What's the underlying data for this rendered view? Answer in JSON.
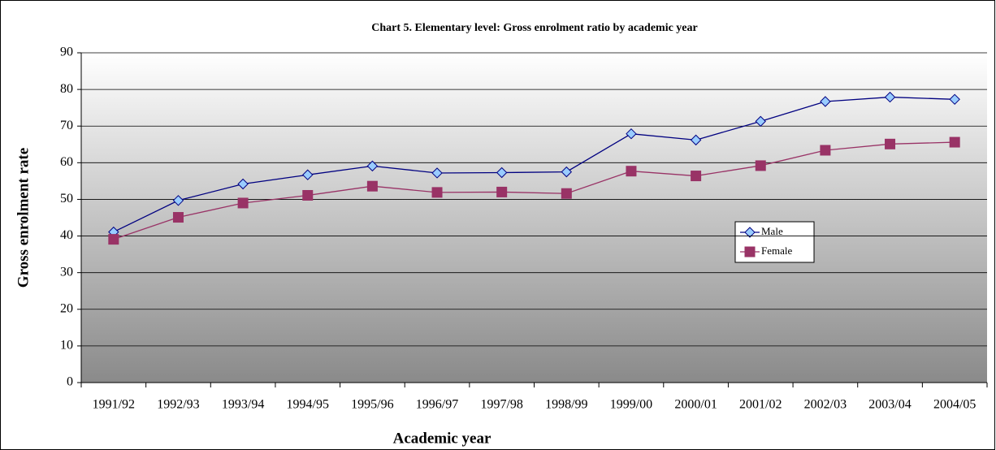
{
  "chart_data": {
    "type": "line",
    "title": "Chart 5. Elementary level:  Gross enrolment ratio by  academic year",
    "x_label": "Academic year",
    "y_label": "Gross enrolment rate",
    "categories": [
      "1991/92",
      "1992/93",
      "1993/94",
      "1994/95",
      "1995/96",
      "1996/97",
      "1997/98",
      "1998/99",
      "1999/00",
      "2000/01",
      "2001/02",
      "2002/03",
      "2003/04",
      "2004/05"
    ],
    "series": [
      {
        "name": "Male",
        "color": "#000080",
        "marker_color": "#99ccff",
        "marker": "diamond",
        "values": [
          41.1,
          49.7,
          54.2,
          56.7,
          59.1,
          57.2,
          57.3,
          57.5,
          67.9,
          66.2,
          71.3,
          76.7,
          77.9,
          77.3
        ]
      },
      {
        "name": "Female",
        "color": "#993366",
        "marker_color": "#993366",
        "marker": "square",
        "values": [
          39.1,
          45.1,
          49.0,
          51.1,
          53.6,
          51.9,
          52.0,
          51.6,
          57.7,
          56.4,
          59.2,
          63.4,
          65.1,
          65.6
        ]
      }
    ],
    "ylim": [
      0,
      90
    ],
    "yticks": [
      0,
      10,
      20,
      30,
      40,
      50,
      60,
      70,
      80,
      90
    ],
    "grid": true
  }
}
